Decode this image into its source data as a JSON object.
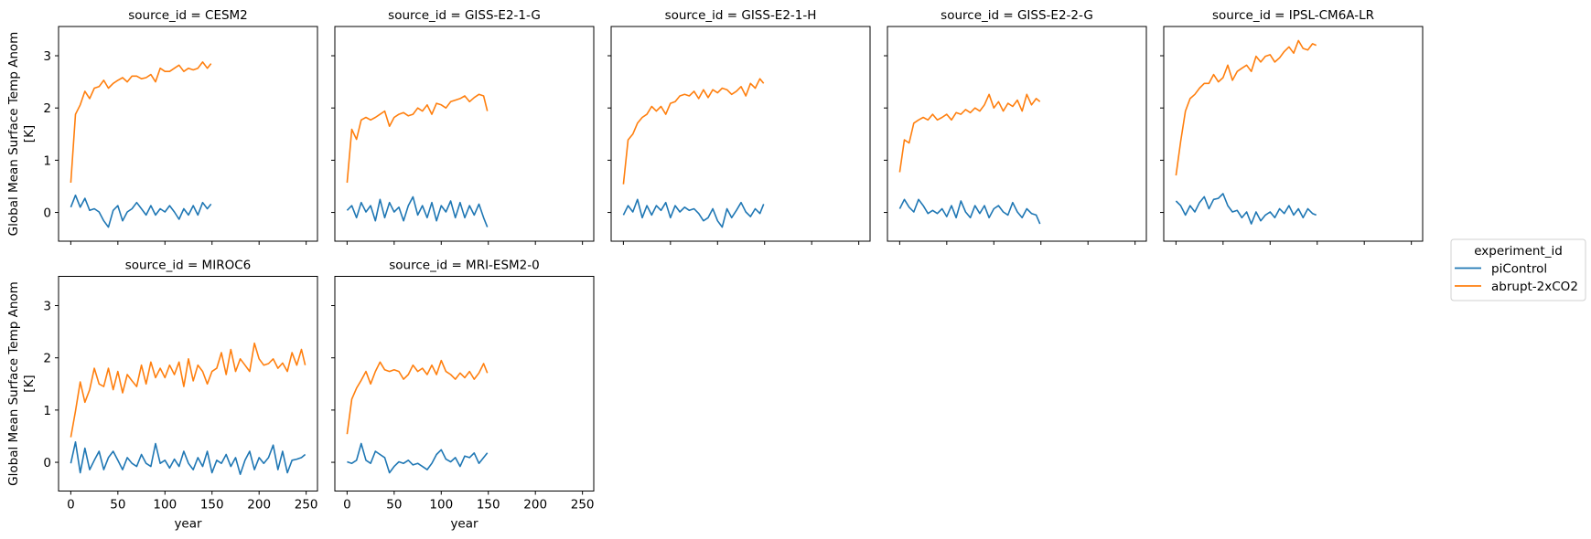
{
  "chart_data": {
    "type": "line",
    "layout": "faceted small multiples, 2 rows x 5 columns, shared axes",
    "ylabel": [
      "Global Mean Surface Temp Anom",
      "[K]"
    ],
    "xlabel": "year",
    "xlim": [
      -13,
      262
    ],
    "ylim": [
      -0.55,
      3.56
    ],
    "xticks": [
      0,
      50,
      100,
      150,
      200,
      250
    ],
    "yticks": [
      0,
      1,
      2,
      3
    ],
    "grid": false,
    "legend": {
      "title": "experiment_id",
      "placement": "right",
      "entries": [
        {
          "name": "piControl",
          "color": "#1f77b4"
        },
        {
          "name": "abrupt-2xCO2",
          "color": "#ff7f0e"
        }
      ]
    },
    "panels": [
      {
        "title": "source_id = CESM2",
        "x": [
          0,
          5,
          10,
          15,
          20,
          25,
          30,
          35,
          40,
          45,
          50,
          55,
          60,
          65,
          70,
          75,
          80,
          85,
          90,
          95,
          100,
          105,
          110,
          115,
          120,
          125,
          130,
          135,
          140,
          145,
          149
        ],
        "series": [
          {
            "name": "piControl",
            "values": [
              0.1,
              0.33,
              0.1,
              0.27,
              0.04,
              0.07,
              0.01,
              -0.16,
              -0.28,
              0.04,
              0.13,
              -0.16,
              0.01,
              0.07,
              0.19,
              0.07,
              -0.05,
              0.13,
              -0.05,
              0.07,
              0.01,
              0.13,
              0.01,
              -0.13,
              0.07,
              -0.05,
              0.13,
              -0.05,
              0.19,
              0.07,
              0.16
            ]
          },
          {
            "name": "abrupt-2xCO2",
            "values": [
              0.57,
              1.88,
              2.06,
              2.32,
              2.18,
              2.38,
              2.41,
              2.53,
              2.38,
              2.47,
              2.53,
              2.58,
              2.5,
              2.61,
              2.61,
              2.56,
              2.58,
              2.64,
              2.5,
              2.76,
              2.7,
              2.7,
              2.76,
              2.82,
              2.7,
              2.76,
              2.73,
              2.76,
              2.88,
              2.76,
              2.85
            ]
          }
        ]
      },
      {
        "title": "source_id = GISS-E2-1-G",
        "x": [
          0,
          5,
          10,
          15,
          20,
          25,
          30,
          35,
          40,
          45,
          50,
          55,
          60,
          65,
          70,
          75,
          80,
          85,
          90,
          95,
          100,
          105,
          110,
          115,
          120,
          125,
          130,
          135,
          140,
          145,
          149
        ],
        "series": [
          {
            "name": "piControl",
            "values": [
              0.04,
              0.13,
              -0.1,
              0.19,
              0.01,
              0.13,
              -0.16,
              0.25,
              -0.1,
              0.19,
              0.01,
              0.1,
              -0.16,
              0.13,
              0.3,
              -0.05,
              0.13,
              -0.1,
              0.19,
              -0.16,
              0.13,
              0.01,
              0.22,
              -0.1,
              0.19,
              -0.1,
              0.13,
              -0.05,
              0.16,
              -0.1,
              -0.28
            ]
          },
          {
            "name": "abrupt-2xCO2",
            "values": [
              0.57,
              1.59,
              1.4,
              1.77,
              1.82,
              1.77,
              1.82,
              1.88,
              1.94,
              1.65,
              1.82,
              1.88,
              1.91,
              1.85,
              1.88,
              2.0,
              1.94,
              2.06,
              1.88,
              2.09,
              2.06,
              2.0,
              2.12,
              2.15,
              2.18,
              2.23,
              2.12,
              2.2,
              2.26,
              2.23,
              1.94
            ]
          }
        ]
      },
      {
        "title": "source_id = GISS-E2-1-H",
        "x": [
          0,
          5,
          10,
          15,
          20,
          25,
          30,
          35,
          40,
          45,
          50,
          55,
          60,
          65,
          70,
          75,
          80,
          85,
          90,
          95,
          100,
          105,
          110,
          115,
          120,
          125,
          130,
          135,
          140,
          145,
          149
        ],
        "series": [
          {
            "name": "piControl",
            "values": [
              -0.05,
              0.13,
              0.01,
              0.25,
              -0.1,
              0.13,
              -0.05,
              0.13,
              0.04,
              0.19,
              -0.1,
              0.13,
              0.01,
              0.1,
              0.04,
              0.07,
              -0.02,
              -0.16,
              -0.1,
              0.07,
              -0.16,
              -0.28,
              0.07,
              -0.1,
              0.04,
              0.19,
              0.01,
              -0.08,
              0.07,
              -0.02,
              0.16
            ]
          },
          {
            "name": "abrupt-2xCO2",
            "values": [
              0.54,
              1.39,
              1.5,
              1.71,
              1.82,
              1.88,
              2.03,
              1.94,
              2.03,
              1.88,
              2.09,
              2.12,
              2.23,
              2.26,
              2.23,
              2.32,
              2.18,
              2.35,
              2.2,
              2.35,
              2.29,
              2.38,
              2.35,
              2.26,
              2.32,
              2.41,
              2.23,
              2.47,
              2.38,
              2.56,
              2.47
            ]
          }
        ]
      },
      {
        "title": "source_id = GISS-E2-2-G",
        "x": [
          0,
          5,
          10,
          15,
          20,
          25,
          30,
          35,
          40,
          45,
          50,
          55,
          60,
          65,
          70,
          75,
          80,
          85,
          90,
          95,
          100,
          105,
          110,
          115,
          120,
          125,
          130,
          135,
          140,
          145,
          149
        ],
        "series": [
          {
            "name": "piControl",
            "values": [
              0.07,
              0.25,
              0.1,
              0.01,
              0.25,
              0.13,
              -0.02,
              0.04,
              -0.02,
              0.07,
              -0.08,
              0.13,
              -0.1,
              0.22,
              0.01,
              -0.1,
              0.13,
              -0.02,
              0.13,
              -0.1,
              0.07,
              0.13,
              0.01,
              -0.05,
              0.19,
              0.01,
              -0.1,
              0.07,
              -0.02,
              -0.05,
              -0.22
            ]
          },
          {
            "name": "abrupt-2xCO2",
            "values": [
              0.77,
              1.39,
              1.33,
              1.71,
              1.77,
              1.82,
              1.77,
              1.88,
              1.77,
              1.82,
              1.88,
              1.77,
              1.91,
              1.88,
              1.97,
              1.91,
              2.0,
              1.94,
              2.06,
              2.26,
              2.0,
              2.12,
              1.94,
              2.09,
              2.03,
              2.15,
              1.94,
              2.26,
              2.06,
              2.18,
              2.12
            ]
          }
        ]
      },
      {
        "title": "source_id = IPSL-CM6A-LR",
        "x": [
          0,
          5,
          10,
          15,
          20,
          25,
          30,
          35,
          40,
          45,
          50,
          55,
          60,
          65,
          70,
          75,
          80,
          85,
          90,
          95,
          100,
          105,
          110,
          115,
          120,
          125,
          130,
          135,
          140,
          145,
          149
        ],
        "series": [
          {
            "name": "piControl",
            "values": [
              0.22,
              0.13,
              -0.05,
              0.13,
              0.01,
              0.19,
              0.3,
              0.07,
              0.25,
              0.27,
              0.36,
              0.13,
              0.01,
              0.04,
              -0.1,
              0.01,
              -0.22,
              0.01,
              -0.16,
              -0.05,
              0.01,
              -0.1,
              0.07,
              -0.02,
              0.13,
              -0.05,
              0.07,
              -0.1,
              0.07,
              -0.02,
              -0.05
            ]
          },
          {
            "name": "abrupt-2xCO2",
            "values": [
              0.71,
              1.36,
              1.94,
              2.18,
              2.26,
              2.38,
              2.47,
              2.47,
              2.64,
              2.5,
              2.58,
              2.82,
              2.53,
              2.7,
              2.76,
              2.82,
              2.7,
              2.99,
              2.88,
              2.99,
              3.02,
              2.88,
              2.96,
              3.08,
              3.17,
              3.05,
              3.29,
              3.14,
              3.11,
              3.23,
              3.2
            ]
          }
        ]
      },
      {
        "title": "source_id = MIROC6",
        "x": [
          0,
          5,
          10,
          15,
          20,
          25,
          30,
          35,
          40,
          45,
          50,
          55,
          60,
          65,
          70,
          75,
          80,
          85,
          90,
          95,
          100,
          105,
          110,
          115,
          120,
          125,
          130,
          135,
          140,
          145,
          150,
          155,
          160,
          165,
          170,
          175,
          180,
          185,
          190,
          195,
          200,
          205,
          210,
          215,
          220,
          225,
          230,
          235,
          240,
          245,
          249
        ],
        "series": [
          {
            "name": "piControl",
            "values": [
              -0.02,
              0.39,
              -0.2,
              0.27,
              -0.14,
              0.04,
              0.21,
              -0.14,
              0.09,
              0.21,
              0.04,
              -0.14,
              0.09,
              -0.02,
              -0.08,
              0.15,
              -0.02,
              -0.08,
              0.36,
              -0.02,
              0.04,
              -0.11,
              0.06,
              -0.08,
              0.21,
              -0.02,
              -0.14,
              0.09,
              -0.08,
              0.21,
              -0.2,
              0.04,
              -0.02,
              0.15,
              -0.08,
              0.09,
              -0.23,
              0.04,
              0.21,
              -0.14,
              0.09,
              -0.02,
              0.09,
              0.33,
              -0.14,
              0.21,
              -0.2,
              0.04,
              0.06,
              0.09,
              0.15
            ]
          },
          {
            "name": "abrupt-2xCO2",
            "values": [
              0.48,
              0.98,
              1.54,
              1.15,
              1.39,
              1.8,
              1.5,
              1.45,
              1.8,
              1.39,
              1.74,
              1.33,
              1.68,
              1.56,
              1.45,
              1.86,
              1.5,
              1.92,
              1.62,
              1.8,
              1.62,
              1.86,
              1.68,
              1.92,
              1.45,
              1.98,
              1.56,
              1.86,
              1.74,
              1.5,
              1.74,
              1.8,
              2.1,
              1.68,
              2.16,
              1.74,
              1.98,
              1.86,
              1.74,
              2.28,
              1.98,
              1.86,
              1.89,
              1.98,
              1.8,
              1.9,
              1.74,
              2.1,
              1.86,
              2.16,
              1.86
            ]
          }
        ]
      },
      {
        "title": "source_id = MRI-ESM2-0",
        "x": [
          0,
          5,
          10,
          15,
          20,
          25,
          30,
          35,
          40,
          45,
          50,
          55,
          60,
          65,
          70,
          75,
          80,
          85,
          90,
          95,
          100,
          105,
          110,
          115,
          120,
          125,
          130,
          135,
          140,
          145,
          149
        ],
        "series": [
          {
            "name": "piControl",
            "values": [
              0.01,
              -0.02,
              0.04,
              0.36,
              0.04,
              -0.02,
              0.21,
              0.15,
              0.09,
              -0.2,
              -0.08,
              0.01,
              -0.02,
              0.04,
              -0.05,
              -0.02,
              -0.08,
              -0.14,
              -0.02,
              0.15,
              0.24,
              0.06,
              0.01,
              0.09,
              -0.08,
              0.12,
              0.09,
              0.18,
              -0.02,
              0.09,
              0.18
            ]
          },
          {
            "name": "abrupt-2xCO2",
            "values": [
              0.54,
              1.21,
              1.42,
              1.57,
              1.74,
              1.5,
              1.74,
              1.92,
              1.77,
              1.74,
              1.77,
              1.74,
              1.59,
              1.68,
              1.86,
              1.74,
              1.8,
              1.68,
              1.86,
              1.68,
              1.95,
              1.74,
              1.68,
              1.59,
              1.71,
              1.62,
              1.74,
              1.59,
              1.71,
              1.89,
              1.71
            ]
          }
        ]
      }
    ]
  }
}
